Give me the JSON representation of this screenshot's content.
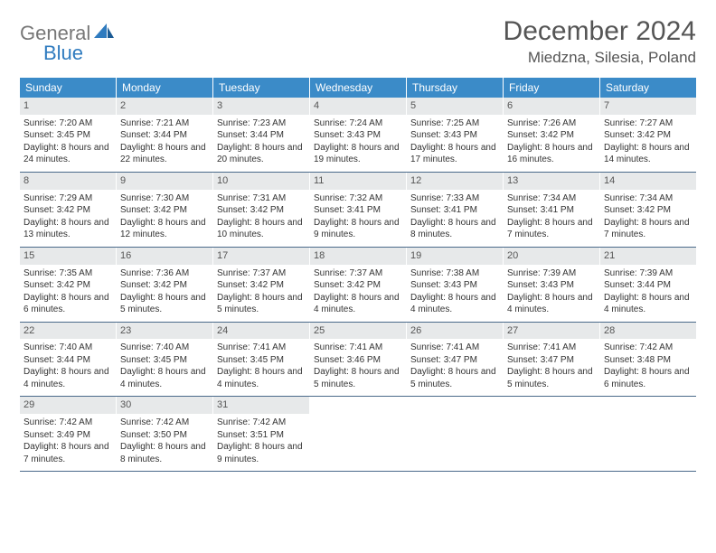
{
  "logo": {
    "line1": "General",
    "line2": "Blue"
  },
  "header": {
    "title": "December 2024",
    "location": "Miedzna, Silesia, Poland"
  },
  "colors": {
    "header_bg": "#3b8bc8",
    "header_text": "#ffffff",
    "daynum_bg": "#e7e9ea",
    "week_border": "#4a6a8a",
    "logo_blue": "#2f7bbf",
    "logo_gray": "#777777"
  },
  "dayNames": [
    "Sunday",
    "Monday",
    "Tuesday",
    "Wednesday",
    "Thursday",
    "Friday",
    "Saturday"
  ],
  "weeks": [
    [
      {
        "n": "1",
        "sr": "7:20 AM",
        "ss": "3:45 PM",
        "dl": "8 hours and 24 minutes."
      },
      {
        "n": "2",
        "sr": "7:21 AM",
        "ss": "3:44 PM",
        "dl": "8 hours and 22 minutes."
      },
      {
        "n": "3",
        "sr": "7:23 AM",
        "ss": "3:44 PM",
        "dl": "8 hours and 20 minutes."
      },
      {
        "n": "4",
        "sr": "7:24 AM",
        "ss": "3:43 PM",
        "dl": "8 hours and 19 minutes."
      },
      {
        "n": "5",
        "sr": "7:25 AM",
        "ss": "3:43 PM",
        "dl": "8 hours and 17 minutes."
      },
      {
        "n": "6",
        "sr": "7:26 AM",
        "ss": "3:42 PM",
        "dl": "8 hours and 16 minutes."
      },
      {
        "n": "7",
        "sr": "7:27 AM",
        "ss": "3:42 PM",
        "dl": "8 hours and 14 minutes."
      }
    ],
    [
      {
        "n": "8",
        "sr": "7:29 AM",
        "ss": "3:42 PM",
        "dl": "8 hours and 13 minutes."
      },
      {
        "n": "9",
        "sr": "7:30 AM",
        "ss": "3:42 PM",
        "dl": "8 hours and 12 minutes."
      },
      {
        "n": "10",
        "sr": "7:31 AM",
        "ss": "3:42 PM",
        "dl": "8 hours and 10 minutes."
      },
      {
        "n": "11",
        "sr": "7:32 AM",
        "ss": "3:41 PM",
        "dl": "8 hours and 9 minutes."
      },
      {
        "n": "12",
        "sr": "7:33 AM",
        "ss": "3:41 PM",
        "dl": "8 hours and 8 minutes."
      },
      {
        "n": "13",
        "sr": "7:34 AM",
        "ss": "3:41 PM",
        "dl": "8 hours and 7 minutes."
      },
      {
        "n": "14",
        "sr": "7:34 AM",
        "ss": "3:42 PM",
        "dl": "8 hours and 7 minutes."
      }
    ],
    [
      {
        "n": "15",
        "sr": "7:35 AM",
        "ss": "3:42 PM",
        "dl": "8 hours and 6 minutes."
      },
      {
        "n": "16",
        "sr": "7:36 AM",
        "ss": "3:42 PM",
        "dl": "8 hours and 5 minutes."
      },
      {
        "n": "17",
        "sr": "7:37 AM",
        "ss": "3:42 PM",
        "dl": "8 hours and 5 minutes."
      },
      {
        "n": "18",
        "sr": "7:37 AM",
        "ss": "3:42 PM",
        "dl": "8 hours and 4 minutes."
      },
      {
        "n": "19",
        "sr": "7:38 AM",
        "ss": "3:43 PM",
        "dl": "8 hours and 4 minutes."
      },
      {
        "n": "20",
        "sr": "7:39 AM",
        "ss": "3:43 PM",
        "dl": "8 hours and 4 minutes."
      },
      {
        "n": "21",
        "sr": "7:39 AM",
        "ss": "3:44 PM",
        "dl": "8 hours and 4 minutes."
      }
    ],
    [
      {
        "n": "22",
        "sr": "7:40 AM",
        "ss": "3:44 PM",
        "dl": "8 hours and 4 minutes."
      },
      {
        "n": "23",
        "sr": "7:40 AM",
        "ss": "3:45 PM",
        "dl": "8 hours and 4 minutes."
      },
      {
        "n": "24",
        "sr": "7:41 AM",
        "ss": "3:45 PM",
        "dl": "8 hours and 4 minutes."
      },
      {
        "n": "25",
        "sr": "7:41 AM",
        "ss": "3:46 PM",
        "dl": "8 hours and 5 minutes."
      },
      {
        "n": "26",
        "sr": "7:41 AM",
        "ss": "3:47 PM",
        "dl": "8 hours and 5 minutes."
      },
      {
        "n": "27",
        "sr": "7:41 AM",
        "ss": "3:47 PM",
        "dl": "8 hours and 5 minutes."
      },
      {
        "n": "28",
        "sr": "7:42 AM",
        "ss": "3:48 PM",
        "dl": "8 hours and 6 minutes."
      }
    ],
    [
      {
        "n": "29",
        "sr": "7:42 AM",
        "ss": "3:49 PM",
        "dl": "8 hours and 7 minutes."
      },
      {
        "n": "30",
        "sr": "7:42 AM",
        "ss": "3:50 PM",
        "dl": "8 hours and 8 minutes."
      },
      {
        "n": "31",
        "sr": "7:42 AM",
        "ss": "3:51 PM",
        "dl": "8 hours and 9 minutes."
      },
      null,
      null,
      null,
      null
    ]
  ],
  "labels": {
    "sunrise": "Sunrise:",
    "sunset": "Sunset:",
    "daylight": "Daylight:"
  }
}
